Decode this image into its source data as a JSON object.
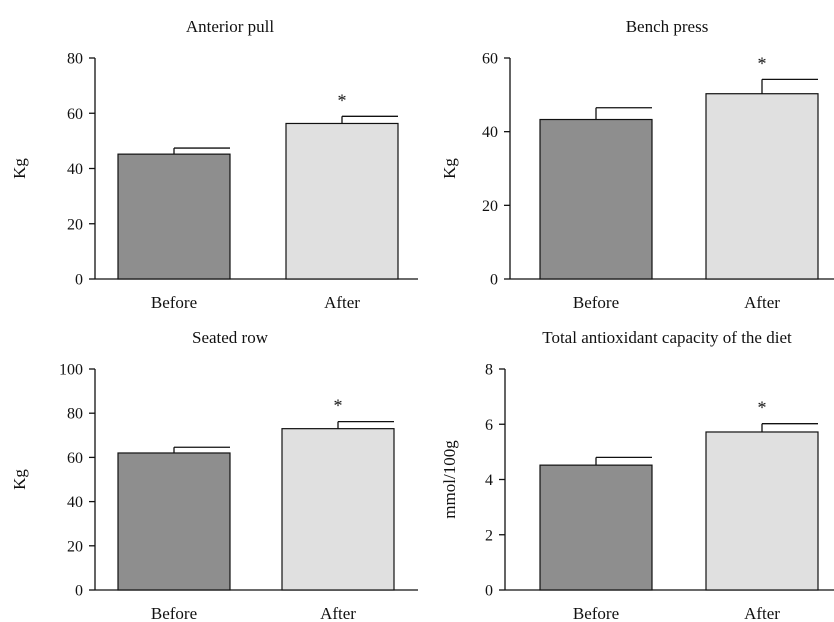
{
  "colors": {
    "before": "#8e8e8e",
    "after": "#e0e0e0"
  },
  "chart_data": [
    {
      "type": "bar",
      "title": "Anterior pull",
      "ylabel": "Kg",
      "categories": [
        "Before",
        "After"
      ],
      "values": [
        45.2,
        56.3
      ],
      "errors": [
        2.2,
        2.6
      ],
      "significance": [
        "",
        "*"
      ],
      "ylim": [
        0,
        80
      ],
      "yticks": [
        0,
        20,
        40,
        60,
        80
      ]
    },
    {
      "type": "bar",
      "title": "Bench press",
      "ylabel": "Kg",
      "categories": [
        "Before",
        "After"
      ],
      "values": [
        43.3,
        50.3
      ],
      "errors": [
        3.2,
        3.9
      ],
      "significance": [
        "",
        "*"
      ],
      "ylim": [
        0,
        60
      ],
      "yticks": [
        0,
        20,
        40,
        60
      ]
    },
    {
      "type": "bar",
      "title": "Seated row",
      "ylabel": "Kg",
      "categories": [
        "Before",
        "After"
      ],
      "values": [
        62.0,
        73.0
      ],
      "errors": [
        2.6,
        3.2
      ],
      "significance": [
        "",
        "*"
      ],
      "ylim": [
        0,
        100
      ],
      "yticks": [
        0,
        20,
        40,
        60,
        80,
        100
      ]
    },
    {
      "type": "bar",
      "title": "Total antioxidant capacity of the diet",
      "ylabel": "mmol/100g",
      "categories": [
        "Before",
        "After"
      ],
      "values": [
        4.52,
        5.72
      ],
      "errors": [
        0.28,
        0.3
      ],
      "significance": [
        "",
        "*"
      ],
      "ylim": [
        0,
        8
      ],
      "yticks": [
        0,
        2,
        4,
        6,
        8
      ]
    }
  ]
}
